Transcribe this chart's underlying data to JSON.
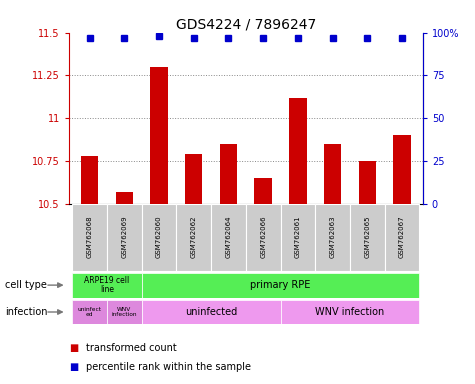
{
  "title": "GDS4224 / 7896247",
  "samples": [
    "GSM762068",
    "GSM762069",
    "GSM762060",
    "GSM762062",
    "GSM762064",
    "GSM762066",
    "GSM762061",
    "GSM762063",
    "GSM762065",
    "GSM762067"
  ],
  "transformed_counts": [
    10.78,
    10.57,
    11.3,
    10.79,
    10.85,
    10.65,
    11.12,
    10.85,
    10.75,
    10.9
  ],
  "percentile_ranks": [
    97,
    97,
    98,
    97,
    97,
    97,
    97,
    97,
    97,
    97
  ],
  "ylim": [
    10.5,
    11.5
  ],
  "yticks": [
    10.5,
    10.75,
    11.0,
    11.25,
    11.5
  ],
  "ytick_labels": [
    "10.5",
    "10.75",
    "11",
    "11.25",
    "11.5"
  ],
  "y2ticks": [
    0,
    25,
    50,
    75,
    100
  ],
  "y2tick_labels": [
    "0",
    "25",
    "50",
    "75",
    "100%"
  ],
  "bar_color": "#cc0000",
  "dot_color": "#0000cc",
  "bar_width": 0.5,
  "dot_size": 4,
  "cell_type_colors": [
    "#55ee55",
    "#55ee55"
  ],
  "infection_colors": [
    "#dd88dd",
    "#dd88dd",
    "#ee99ee",
    "#ee99ee"
  ],
  "sample_bg_color": "#cccccc",
  "legend_items": [
    {
      "color": "#cc0000",
      "label": "transformed count"
    },
    {
      "color": "#0000cc",
      "label": "percentile rank within the sample"
    }
  ],
  "cell_type_label": "cell type",
  "infection_label": "infection",
  "grid_color": "#888888",
  "tick_label_color_left": "#cc0000",
  "tick_label_color_right": "#0000cc",
  "title_fontsize": 10,
  "tick_fontsize": 7,
  "label_fontsize": 7,
  "sample_fontsize": 5,
  "annotation_fontsize": 7
}
